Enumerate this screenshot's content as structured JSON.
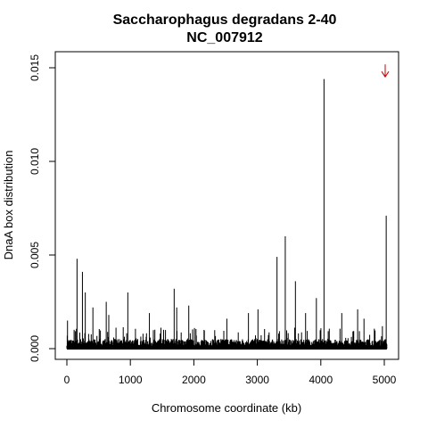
{
  "chart_data": {
    "type": "bar",
    "title": "Saccharophagus degradans 2-40",
    "subtitle": "NC_007912",
    "xlabel": "Chromosome coordinate (kb)",
    "ylabel": "DnaA box distribution",
    "xlim": [
      0,
      5070
    ],
    "ylim": [
      0,
      0.0155
    ],
    "xticks": [
      "0",
      "1000",
      "2000",
      "3000",
      "4000",
      "5000"
    ],
    "yticks": [
      "0.000",
      "0.005",
      "0.010",
      "0.015"
    ],
    "bar_color": "#000000",
    "x": [
      10,
      160,
      245,
      290,
      410,
      620,
      660,
      960,
      1300,
      1690,
      1730,
      1920,
      2520,
      2860,
      3010,
      3310,
      3440,
      3600,
      3760,
      3930,
      4050,
      4330,
      4580,
      4680,
      4970,
      5030
    ],
    "values": [
      0.0015,
      0.0048,
      0.0041,
      0.003,
      0.0022,
      0.0025,
      0.0018,
      0.003,
      0.0019,
      0.0032,
      0.0022,
      0.0023,
      0.0016,
      0.0019,
      0.0021,
      0.0049,
      0.006,
      0.0036,
      0.0019,
      0.0027,
      0.0144,
      0.0019,
      0.0021,
      0.0016,
      0.0012,
      0.0071
    ],
    "annotations": [
      {
        "type": "arrow",
        "symbol": "↓",
        "x": 5000,
        "y": 0.0148,
        "color": "#c00000"
      }
    ]
  }
}
